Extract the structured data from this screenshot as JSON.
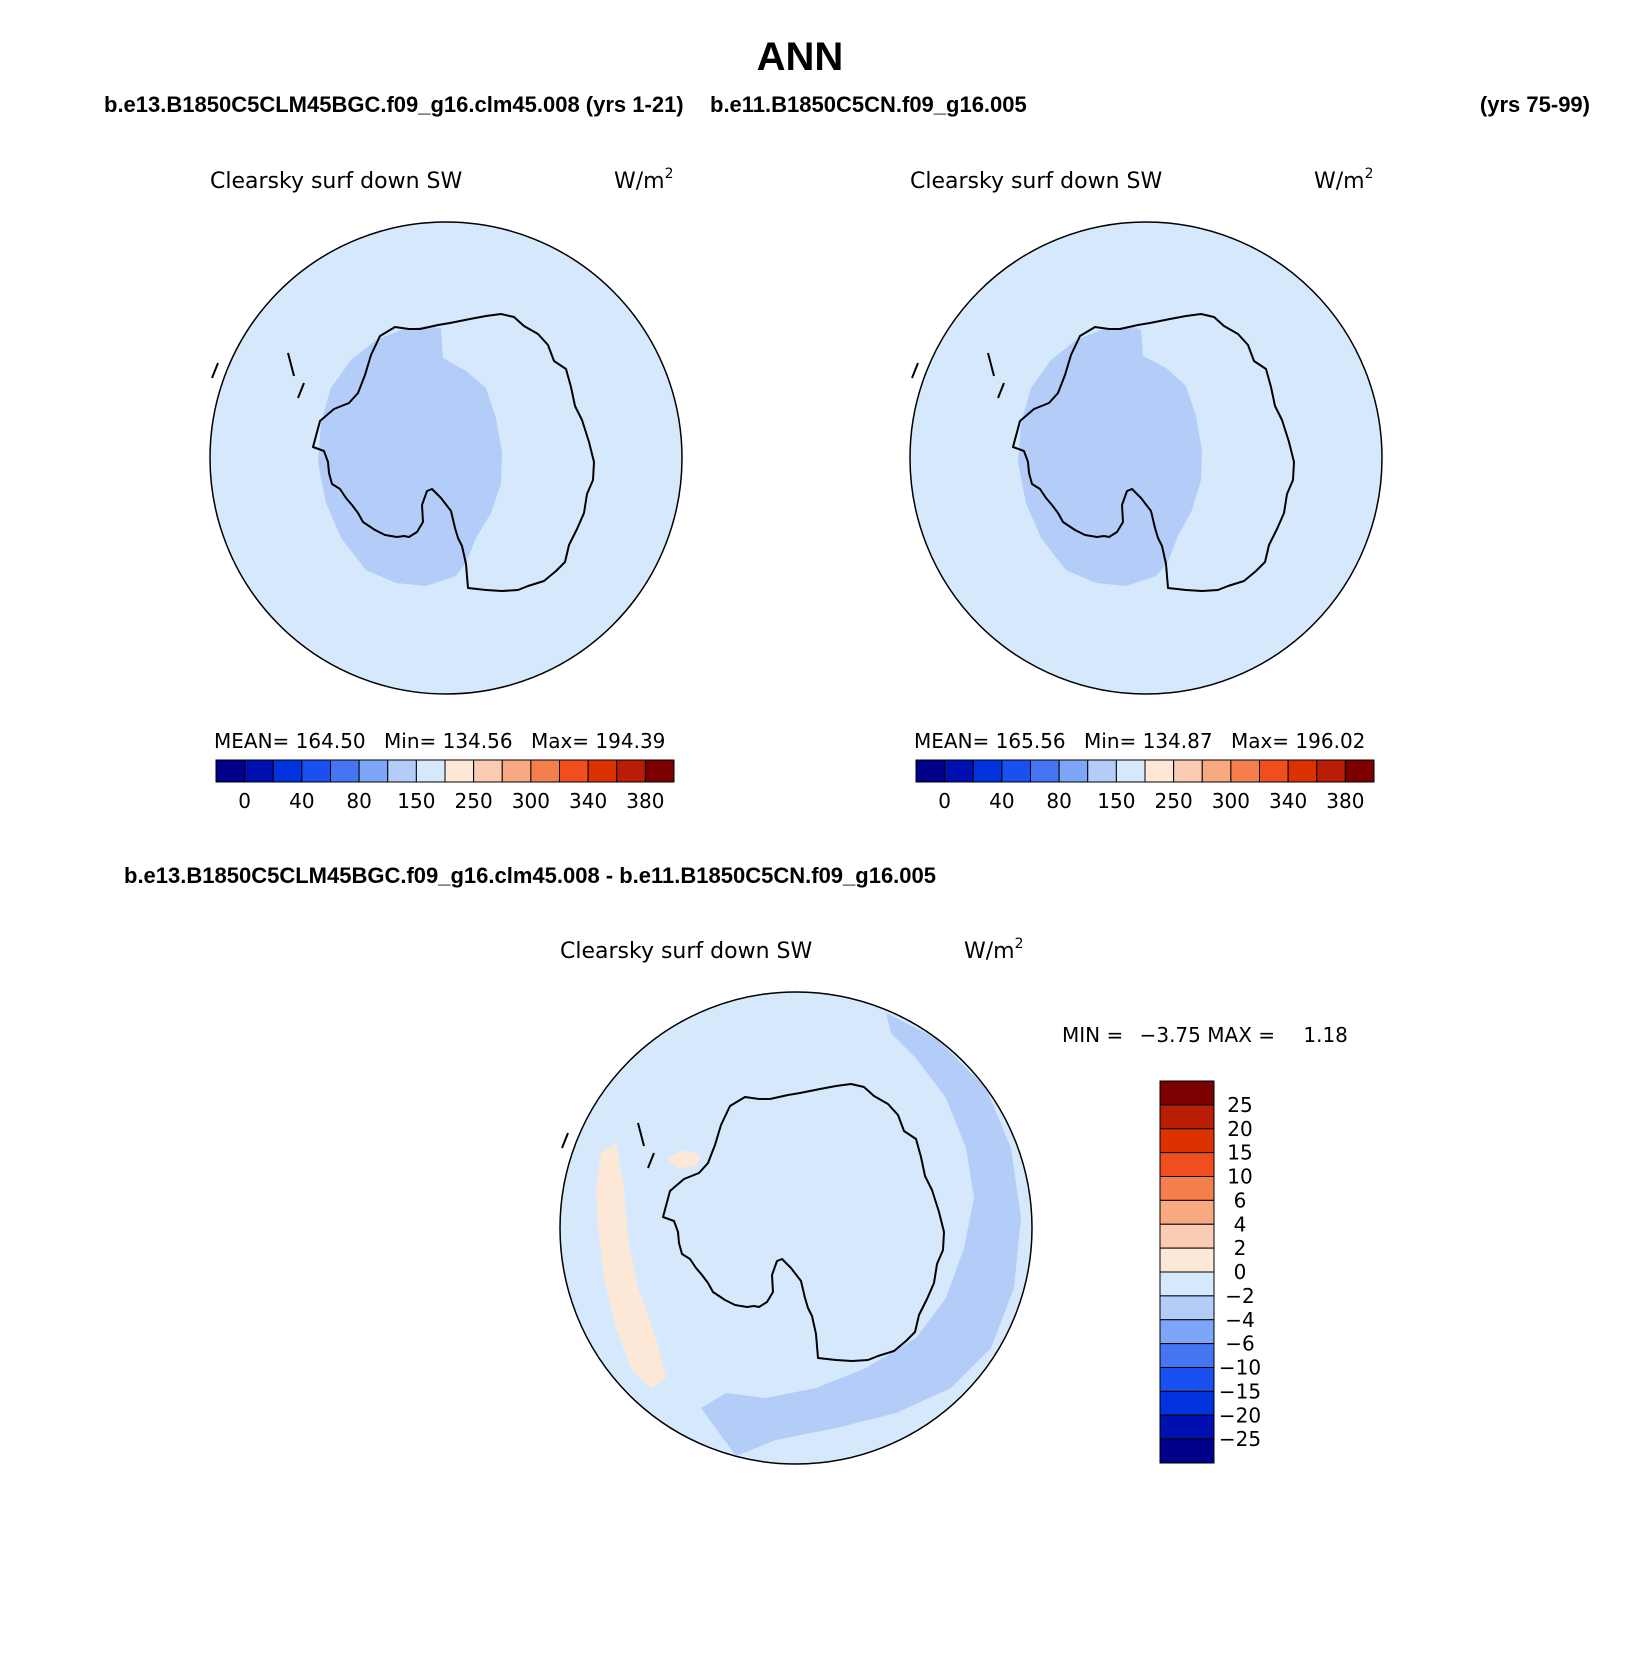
{
  "main_title": "ANN",
  "top_left_case": "b.e13.B1850C5CLM45BGC.f09_g16.clm45.008 (yrs 1-21)",
  "top_right_case": "b.e11.B1850C5CN.f09_g16.005",
  "top_right_years": "(yrs 75-99)",
  "diff_title": "b.e13.B1850C5CLM45BGC.f09_g16.clm45.008 - b.e11.B1850C5CN.f09_g16.005",
  "colors": {
    "background_field": "#d6e8fc",
    "low_region": "#b3cdf8",
    "positive_region": "#fde8d8",
    "coastline": "#000000"
  },
  "panels": [
    {
      "variable": "Clearsky surf down SW",
      "units_base": "W/m",
      "units_exp": "2",
      "stats": {
        "mean_label": "MEAN=",
        "mean": "164.50",
        "min_label": "Min=",
        "min": "134.56",
        "max_label": "Max=",
        "max": "194.39"
      }
    },
    {
      "variable": "Clearsky surf down SW",
      "units_base": "W/m",
      "units_exp": "2",
      "stats": {
        "mean_label": "MEAN=",
        "mean": "165.56",
        "min_label": "Min=",
        "min": "134.87",
        "max_label": "Max=",
        "max": "196.02"
      }
    }
  ],
  "diff_panel": {
    "variable": "Clearsky surf down SW",
    "units_base": "W/m",
    "units_exp": "2",
    "min_label": "MIN =",
    "min": "−3.75",
    "max_label": "MAX =",
    "max": "1.18"
  },
  "abs_colorbar": {
    "colors": [
      "#00008b",
      "#0010b0",
      "#0033dd",
      "#1a4ff0",
      "#4575f2",
      "#7ea6f8",
      "#b3cdf8",
      "#d6e8fc",
      "#fde8d8",
      "#fbcbb3",
      "#f8a982",
      "#f57f4c",
      "#f04e1e",
      "#dc3200",
      "#b81e05",
      "#7d0000"
    ],
    "tick_labels": [
      "0",
      "40",
      "80",
      "150",
      "250",
      "300",
      "340",
      "380"
    ]
  },
  "diff_colorbar": {
    "colors": [
      "#7d0000",
      "#b81e05",
      "#dc3200",
      "#f04e1e",
      "#f57f4c",
      "#f8a982",
      "#fbcbb3",
      "#fde8d8",
      "#d6e8fc",
      "#b3cdf8",
      "#7ea6f8",
      "#4575f2",
      "#1a4ff0",
      "#0033dd",
      "#0010b0",
      "#00008b"
    ],
    "tick_labels": [
      "25",
      "20",
      "15",
      "10",
      "6",
      "4",
      "2",
      "0",
      "−2",
      "−4",
      "−6",
      "−10",
      "−15",
      "−20",
      "−25"
    ]
  }
}
